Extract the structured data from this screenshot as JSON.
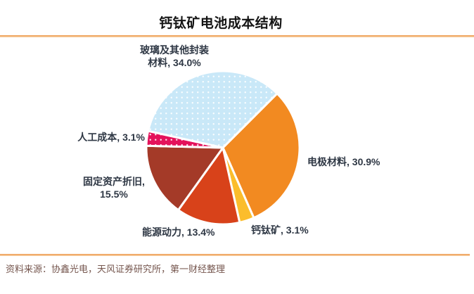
{
  "page": {
    "title": "钙钛矿电池成本结构",
    "source_note": "资料来源：协鑫光电，天风证券研究所，第一财经整理"
  },
  "colors": {
    "accent_rule_orange": "#ED9B51",
    "title_text": "#141414",
    "label_text": "#2e3744",
    "source_text": "#75564E",
    "slice_gap_stroke": "#ffffff"
  },
  "chart_data": {
    "type": "pie",
    "title": "钙钛矿电池成本结构",
    "start_angle_clockwise_from_top_deg": 45,
    "legend_position": "none",
    "slices": [
      {
        "name": "电极材料",
        "value": 30.9,
        "color": "#F28A21",
        "pattern": "solid",
        "label": "电极材料, 30.9%"
      },
      {
        "name": "钙钛矿",
        "value": 3.1,
        "color": "#FBBD2C",
        "pattern": "solid",
        "label": "钙钛矿, 3.1%"
      },
      {
        "name": "能源动力",
        "value": 13.4,
        "color": "#D8421A",
        "pattern": "solid",
        "label": "能源动力, 13.4%"
      },
      {
        "name": "固定资产折旧",
        "value": 15.5,
        "color": "#A43A28",
        "pattern": "solid",
        "label": "固定资产折旧, 15.5%"
      },
      {
        "name": "人工成本",
        "value": 3.1,
        "color": "#E4125B",
        "pattern": "white-dots",
        "label": "人工成本, 3.1%"
      },
      {
        "name": "玻璃及其他封装材料",
        "value": 34.0,
        "color": "#C9E8F8",
        "pattern": "white-dots",
        "label": "玻璃及其他封装材料, 34.0%"
      }
    ],
    "callout_labels": {
      "glass": [
        "玻璃及其他封装",
        "材料, 34.0%"
      ],
      "electrode": [
        "电极材料, 30.9%"
      ],
      "perovskite": [
        "钙钛矿, 3.1%"
      ],
      "energy": [
        "能源动力, 13.4%"
      ],
      "depreciation": [
        "固定资产折旧,",
        "15.5%"
      ],
      "labor": [
        "人工成本, 3.1%"
      ]
    }
  }
}
